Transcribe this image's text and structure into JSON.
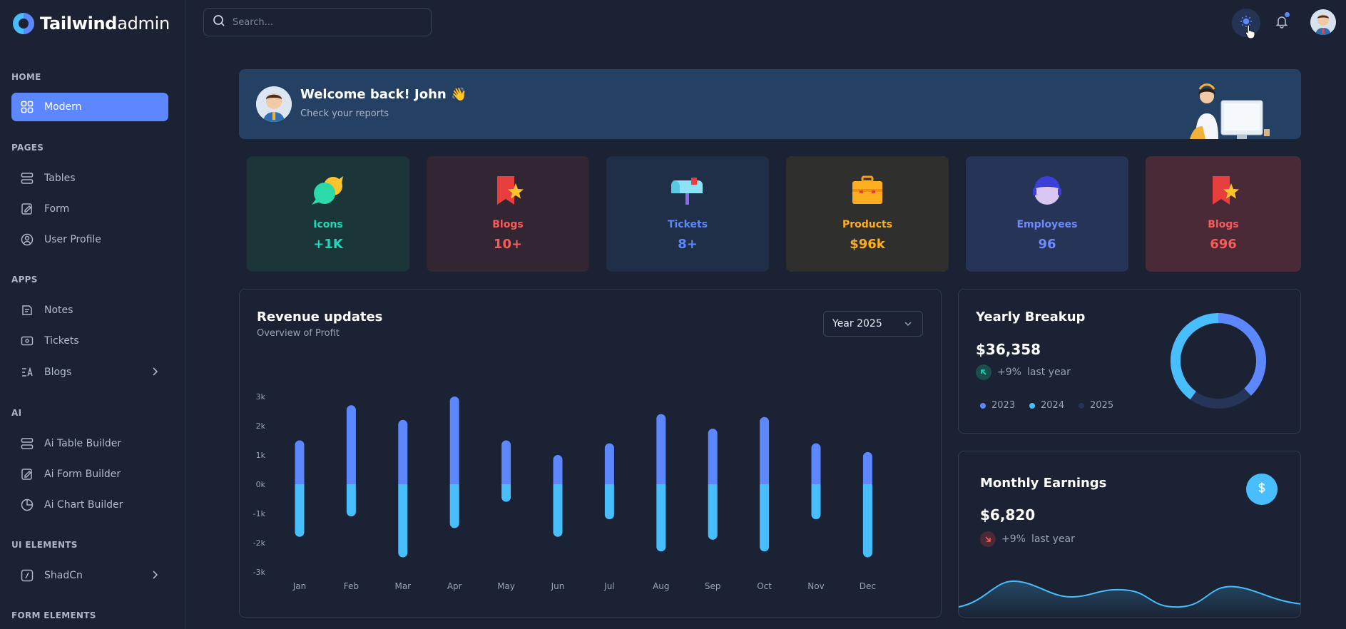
{
  "brand": {
    "bold": "Tailwind",
    "light": "admin"
  },
  "sidebar": {
    "sections": [
      {
        "title": "HOME"
      },
      {
        "title": "PAGES"
      },
      {
        "title": "APPS"
      },
      {
        "title": "AI"
      },
      {
        "title": "UI ELEMENTS"
      },
      {
        "title": "FORM ELEMENTS"
      }
    ],
    "items": [
      {
        "label": "Modern",
        "icon": "grid-icon",
        "active": true
      },
      {
        "label": "Tables",
        "icon": "table-icon"
      },
      {
        "label": "Form",
        "icon": "form-edit-icon"
      },
      {
        "label": "User Profile",
        "icon": "user-circle-icon"
      },
      {
        "label": "Notes",
        "icon": "notes-icon"
      },
      {
        "label": "Tickets",
        "icon": "ticket-icon"
      },
      {
        "label": "Blogs",
        "icon": "blog-icon",
        "expandable": true
      },
      {
        "label": "Ai Table Builder",
        "icon": "table-icon"
      },
      {
        "label": "Ai Form Builder",
        "icon": "form-edit-icon"
      },
      {
        "label": "Ai Chart Builder",
        "icon": "pie-chart-icon"
      },
      {
        "label": "ShadCn",
        "icon": "slash-box-icon",
        "expandable": true
      }
    ]
  },
  "header": {
    "search_placeholder": "Search...",
    "theme_icon": "sun-icon",
    "notification_icon": "bell-icon"
  },
  "welcome": {
    "title": "Welcome back! John 👋",
    "subtitle": "Check your reports"
  },
  "stats": [
    {
      "label": "Icons",
      "value": "+1K",
      "color": "#13deb9",
      "bg": "#1b3639"
    },
    {
      "label": "Blogs",
      "value": "10+",
      "color": "#fa5a5a",
      "bg": "#322632"
    },
    {
      "label": "Tickets",
      "value": "8+",
      "color": "#5d87ff",
      "bg": "#1f2f48"
    },
    {
      "label": "Products",
      "value": "$96k",
      "color": "#ffae1f",
      "bg": "#2f2f2e"
    },
    {
      "label": "Employees",
      "value": "96",
      "color": "#6f8bff",
      "bg": "#253457"
    },
    {
      "label": "Blogs",
      "value": "696",
      "color": "#fa5a5a",
      "bg": "#4a2a36"
    }
  ],
  "revenue": {
    "title": "Revenue updates",
    "subtitle": "Overview of Profit",
    "year_select": "Year 2025"
  },
  "chart_data": {
    "type": "bar",
    "categories": [
      "Jan",
      "Feb",
      "Mar",
      "Apr",
      "May",
      "Jun",
      "Jul",
      "Aug",
      "Sep",
      "Oct",
      "Nov",
      "Dec"
    ],
    "series": [
      {
        "values": [
          1.5,
          2.7,
          2.2,
          3.0,
          1.5,
          1.0,
          1.4,
          2.4,
          1.9,
          2.3,
          1.4,
          1.1
        ]
      },
      {
        "values": [
          -1.8,
          -1.1,
          -2.5,
          -1.5,
          -0.6,
          -1.8,
          -1.2,
          -2.3,
          -1.9,
          -2.3,
          -1.2,
          -2.5
        ]
      }
    ],
    "yticks": [
      "3k",
      "2k",
      "1k",
      "0k",
      "-1k",
      "-2k",
      "-3k"
    ],
    "ylim": [
      -3,
      3
    ],
    "colors": [
      "#5d87ff",
      "#49beff"
    ]
  },
  "yearly": {
    "title": "Yearly Breakup",
    "amount": "$36,358",
    "trend": "+9%",
    "trend_note": "last year",
    "legend": [
      {
        "label": "2023",
        "color": "#5d87ff"
      },
      {
        "label": "2024",
        "color": "#49beff"
      },
      {
        "label": "2025",
        "color": "#253457"
      }
    ],
    "donut": [
      38,
      40,
      22
    ]
  },
  "monthly": {
    "title": "Monthly Earnings",
    "amount": "$6,820",
    "trend": "+9%",
    "trend_note": "last year",
    "button_icon": "dollar-icon"
  }
}
